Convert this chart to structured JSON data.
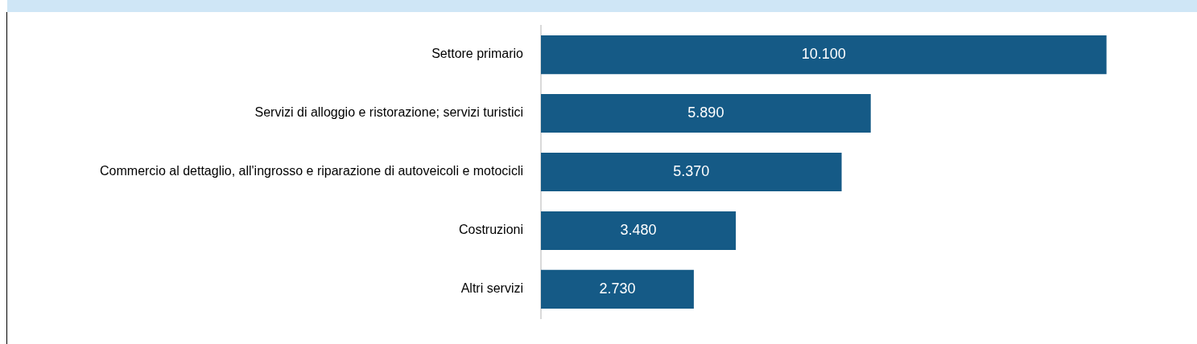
{
  "chart_data": {
    "type": "bar",
    "orientation": "horizontal",
    "categories": [
      "Settore primario",
      "Servizi di alloggio e ristorazione; servizi turistici",
      "Commercio al dettaglio, all'ingrosso e riparazione di autoveicoli e motocicli",
      "Costruzioni",
      "Altri servizi"
    ],
    "values": [
      10100,
      5890,
      5370,
      3480,
      2730
    ],
    "value_labels": [
      "10.100",
      "5.890",
      "5.370",
      "3.480",
      "2.730"
    ],
    "color": "#155a86",
    "legend": false
  }
}
